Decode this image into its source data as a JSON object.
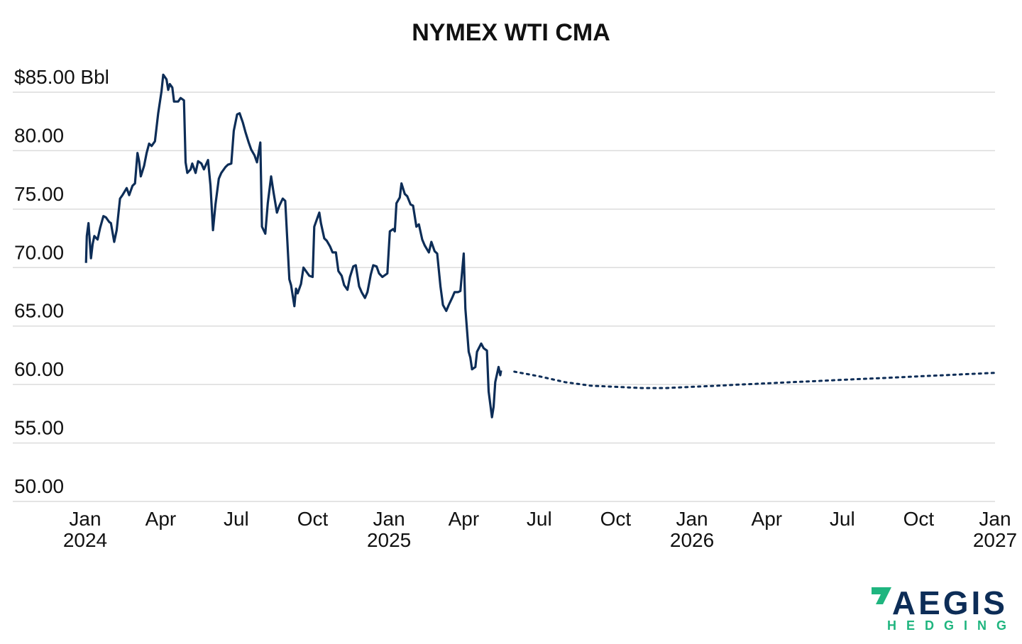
{
  "colors": {
    "line": "#0d2d57",
    "grid": "#dcdcdc",
    "logo_primary": "#0d2d57",
    "logo_accent": "#1fb57f"
  },
  "logo": {
    "word": "AEGIS",
    "sub": "HEDGING"
  },
  "chart_data": {
    "type": "line",
    "title": "NYMEX WTI CMA",
    "ylim": [
      50,
      85
    ],
    "y_ticks": [
      {
        "value": 85,
        "label": "$85.00 Bbl"
      },
      {
        "value": 80,
        "label": "80.00"
      },
      {
        "value": 75,
        "label": "75.00"
      },
      {
        "value": 70,
        "label": "70.00"
      },
      {
        "value": 65,
        "label": "65.00"
      },
      {
        "value": 60,
        "label": "60.00"
      },
      {
        "value": 55,
        "label": "55.00"
      },
      {
        "value": 50,
        "label": "50.00"
      }
    ],
    "x_range": [
      "2024-01-01",
      "2027-01-01"
    ],
    "x_ticks": [
      {
        "date": "2024-01-01",
        "label": "Jan",
        "year": "2024"
      },
      {
        "date": "2024-04-01",
        "label": "Apr",
        "year": ""
      },
      {
        "date": "2024-07-01",
        "label": "Jul",
        "year": ""
      },
      {
        "date": "2024-10-01",
        "label": "Oct",
        "year": ""
      },
      {
        "date": "2025-01-01",
        "label": "Jan",
        "year": "2025"
      },
      {
        "date": "2025-04-01",
        "label": "Apr",
        "year": ""
      },
      {
        "date": "2025-07-01",
        "label": "Jul",
        "year": ""
      },
      {
        "date": "2025-10-01",
        "label": "Oct",
        "year": ""
      },
      {
        "date": "2026-01-01",
        "label": "Jan",
        "year": "2026"
      },
      {
        "date": "2026-04-01",
        "label": "Apr",
        "year": ""
      },
      {
        "date": "2026-07-01",
        "label": "Jul",
        "year": ""
      },
      {
        "date": "2026-10-01",
        "label": "Oct",
        "year": ""
      },
      {
        "date": "2027-01-01",
        "label": "Jan",
        "year": "2027"
      }
    ],
    "grid": true,
    "legend": "none",
    "series": [
      {
        "style": "solid",
        "points": [
          [
            "2024-01-02",
            70.4
          ],
          [
            "2024-01-03",
            72.7
          ],
          [
            "2024-01-05",
            73.8
          ],
          [
            "2024-01-08",
            70.8
          ],
          [
            "2024-01-10",
            72.0
          ],
          [
            "2024-01-12",
            72.7
          ],
          [
            "2024-01-16",
            72.4
          ],
          [
            "2024-01-19",
            73.4
          ],
          [
            "2024-01-23",
            74.4
          ],
          [
            "2024-01-26",
            74.3
          ],
          [
            "2024-01-30",
            73.9
          ],
          [
            "2024-02-01",
            73.8
          ],
          [
            "2024-02-05",
            72.2
          ],
          [
            "2024-02-08",
            73.2
          ],
          [
            "2024-02-12",
            75.9
          ],
          [
            "2024-02-15",
            76.2
          ],
          [
            "2024-02-20",
            76.8
          ],
          [
            "2024-02-23",
            76.2
          ],
          [
            "2024-02-27",
            77.0
          ],
          [
            "2024-03-01",
            77.2
          ],
          [
            "2024-03-04",
            79.8
          ],
          [
            "2024-03-06",
            79.1
          ],
          [
            "2024-03-08",
            77.8
          ],
          [
            "2024-03-12",
            78.7
          ],
          [
            "2024-03-15",
            79.8
          ],
          [
            "2024-03-18",
            80.6
          ],
          [
            "2024-03-21",
            80.4
          ],
          [
            "2024-03-25",
            80.8
          ],
          [
            "2024-03-29",
            83.2
          ],
          [
            "2024-04-02",
            85.1
          ],
          [
            "2024-04-04",
            86.5
          ],
          [
            "2024-04-08",
            86.1
          ],
          [
            "2024-04-10",
            85.2
          ],
          [
            "2024-04-12",
            85.7
          ],
          [
            "2024-04-15",
            85.4
          ],
          [
            "2024-04-17",
            84.2
          ],
          [
            "2024-04-22",
            84.2
          ],
          [
            "2024-04-25",
            84.5
          ],
          [
            "2024-04-29",
            84.3
          ],
          [
            "2024-05-01",
            79.0
          ],
          [
            "2024-05-03",
            78.1
          ],
          [
            "2024-05-07",
            78.4
          ],
          [
            "2024-05-09",
            78.9
          ],
          [
            "2024-05-13",
            78.1
          ],
          [
            "2024-05-16",
            79.1
          ],
          [
            "2024-05-20",
            78.9
          ],
          [
            "2024-05-23",
            78.4
          ],
          [
            "2024-05-28",
            79.2
          ],
          [
            "2024-05-31",
            77.0
          ],
          [
            "2024-06-03",
            73.2
          ],
          [
            "2024-06-06",
            75.4
          ],
          [
            "2024-06-10",
            77.6
          ],
          [
            "2024-06-13",
            78.1
          ],
          [
            "2024-06-18",
            78.6
          ],
          [
            "2024-06-21",
            78.8
          ],
          [
            "2024-06-25",
            78.9
          ],
          [
            "2024-06-28",
            81.7
          ],
          [
            "2024-07-02",
            83.1
          ],
          [
            "2024-07-05",
            83.2
          ],
          [
            "2024-07-09",
            82.4
          ],
          [
            "2024-07-12",
            81.6
          ],
          [
            "2024-07-16",
            80.7
          ],
          [
            "2024-07-19",
            80.1
          ],
          [
            "2024-07-23",
            79.6
          ],
          [
            "2024-07-26",
            79.0
          ],
          [
            "2024-07-30",
            80.7
          ],
          [
            "2024-08-01",
            73.5
          ],
          [
            "2024-08-05",
            72.9
          ],
          [
            "2024-08-08",
            75.5
          ],
          [
            "2024-08-12",
            77.8
          ],
          [
            "2024-08-15",
            76.4
          ],
          [
            "2024-08-19",
            74.7
          ],
          [
            "2024-08-22",
            75.3
          ],
          [
            "2024-08-26",
            75.9
          ],
          [
            "2024-08-29",
            75.7
          ],
          [
            "2024-09-03",
            69.0
          ],
          [
            "2024-09-05",
            68.5
          ],
          [
            "2024-09-09",
            66.7
          ],
          [
            "2024-09-11",
            68.2
          ],
          [
            "2024-09-13",
            67.8
          ],
          [
            "2024-09-17",
            68.6
          ],
          [
            "2024-09-20",
            70.0
          ],
          [
            "2024-09-24",
            69.6
          ],
          [
            "2024-09-27",
            69.3
          ],
          [
            "2024-10-01",
            69.2
          ],
          [
            "2024-10-03",
            73.5
          ],
          [
            "2024-10-07",
            74.3
          ],
          [
            "2024-10-09",
            74.7
          ],
          [
            "2024-10-11",
            73.8
          ],
          [
            "2024-10-15",
            72.5
          ],
          [
            "2024-10-18",
            72.3
          ],
          [
            "2024-10-22",
            71.8
          ],
          [
            "2024-10-25",
            71.3
          ],
          [
            "2024-10-29",
            71.3
          ],
          [
            "2024-11-01",
            69.7
          ],
          [
            "2024-11-05",
            69.3
          ],
          [
            "2024-11-08",
            68.5
          ],
          [
            "2024-11-12",
            68.1
          ],
          [
            "2024-11-15",
            69.2
          ],
          [
            "2024-11-19",
            70.1
          ],
          [
            "2024-11-22",
            70.2
          ],
          [
            "2024-11-26",
            68.4
          ],
          [
            "2024-11-29",
            67.9
          ],
          [
            "2024-12-03",
            67.4
          ],
          [
            "2024-12-06",
            67.9
          ],
          [
            "2024-12-10",
            69.4
          ],
          [
            "2024-12-13",
            70.2
          ],
          [
            "2024-12-17",
            70.1
          ],
          [
            "2024-12-20",
            69.5
          ],
          [
            "2024-12-24",
            69.2
          ],
          [
            "2024-12-30",
            69.5
          ],
          [
            "2025-01-02",
            73.1
          ],
          [
            "2025-01-06",
            73.3
          ],
          [
            "2025-01-08",
            73.1
          ],
          [
            "2025-01-10",
            75.5
          ],
          [
            "2025-01-14",
            76.0
          ],
          [
            "2025-01-16",
            77.2
          ],
          [
            "2025-01-20",
            76.3
          ],
          [
            "2025-01-23",
            76.1
          ],
          [
            "2025-01-27",
            75.4
          ],
          [
            "2025-01-30",
            75.3
          ],
          [
            "2025-02-03",
            73.5
          ],
          [
            "2025-02-06",
            73.7
          ],
          [
            "2025-02-10",
            72.4
          ],
          [
            "2025-02-13",
            71.9
          ],
          [
            "2025-02-18",
            71.3
          ],
          [
            "2025-02-21",
            72.2
          ],
          [
            "2025-02-25",
            71.4
          ],
          [
            "2025-02-28",
            71.2
          ],
          [
            "2025-03-04",
            68.4
          ],
          [
            "2025-03-07",
            66.8
          ],
          [
            "2025-03-11",
            66.3
          ],
          [
            "2025-03-14",
            66.8
          ],
          [
            "2025-03-18",
            67.4
          ],
          [
            "2025-03-21",
            67.9
          ],
          [
            "2025-03-25",
            67.9
          ],
          [
            "2025-03-28",
            68.0
          ],
          [
            "2025-04-01",
            71.2
          ],
          [
            "2025-04-03",
            66.5
          ],
          [
            "2025-04-07",
            62.8
          ],
          [
            "2025-04-09",
            62.3
          ],
          [
            "2025-04-11",
            61.3
          ],
          [
            "2025-04-15",
            61.5
          ],
          [
            "2025-04-17",
            62.8
          ],
          [
            "2025-04-22",
            63.5
          ],
          [
            "2025-04-25",
            63.1
          ],
          [
            "2025-04-29",
            62.9
          ],
          [
            "2025-05-01",
            59.4
          ],
          [
            "2025-05-05",
            57.2
          ],
          [
            "2025-05-07",
            58.1
          ],
          [
            "2025-05-09",
            60.2
          ],
          [
            "2025-05-13",
            61.5
          ],
          [
            "2025-05-15",
            60.8
          ],
          [
            "2025-05-16",
            61.2
          ]
        ]
      },
      {
        "style": "dotted",
        "points": [
          [
            "2025-06-01",
            61.1
          ],
          [
            "2025-07-01",
            60.7
          ],
          [
            "2025-08-01",
            60.2
          ],
          [
            "2025-09-01",
            59.9
          ],
          [
            "2025-10-01",
            59.8
          ],
          [
            "2025-11-01",
            59.7
          ],
          [
            "2025-12-01",
            59.7
          ],
          [
            "2026-01-01",
            59.8
          ],
          [
            "2026-02-01",
            59.9
          ],
          [
            "2026-03-01",
            60.0
          ],
          [
            "2026-04-01",
            60.1
          ],
          [
            "2026-05-01",
            60.2
          ],
          [
            "2026-06-01",
            60.3
          ],
          [
            "2026-07-01",
            60.4
          ],
          [
            "2026-08-01",
            60.5
          ],
          [
            "2026-09-01",
            60.6
          ],
          [
            "2026-10-01",
            60.7
          ],
          [
            "2026-11-01",
            60.8
          ],
          [
            "2026-12-01",
            60.9
          ],
          [
            "2027-01-01",
            61.0
          ]
        ]
      }
    ]
  }
}
